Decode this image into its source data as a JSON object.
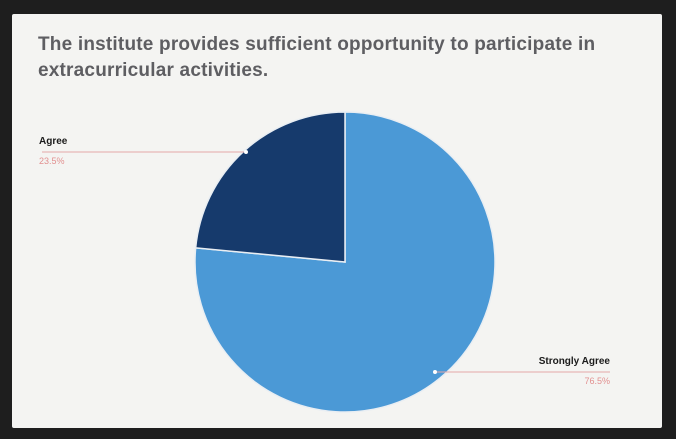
{
  "chart_data": {
    "type": "pie",
    "title": "The institute provides sufficient opportunity to participate in extracurricular activities.",
    "slices": [
      {
        "label": "Strongly Agree",
        "value": 76.5,
        "value_label": "76.5%",
        "color": "#4b99d6"
      },
      {
        "label": "Agree",
        "value": 23.5,
        "value_label": "23.5%",
        "color": "#163a6c"
      }
    ],
    "legend": "none"
  }
}
